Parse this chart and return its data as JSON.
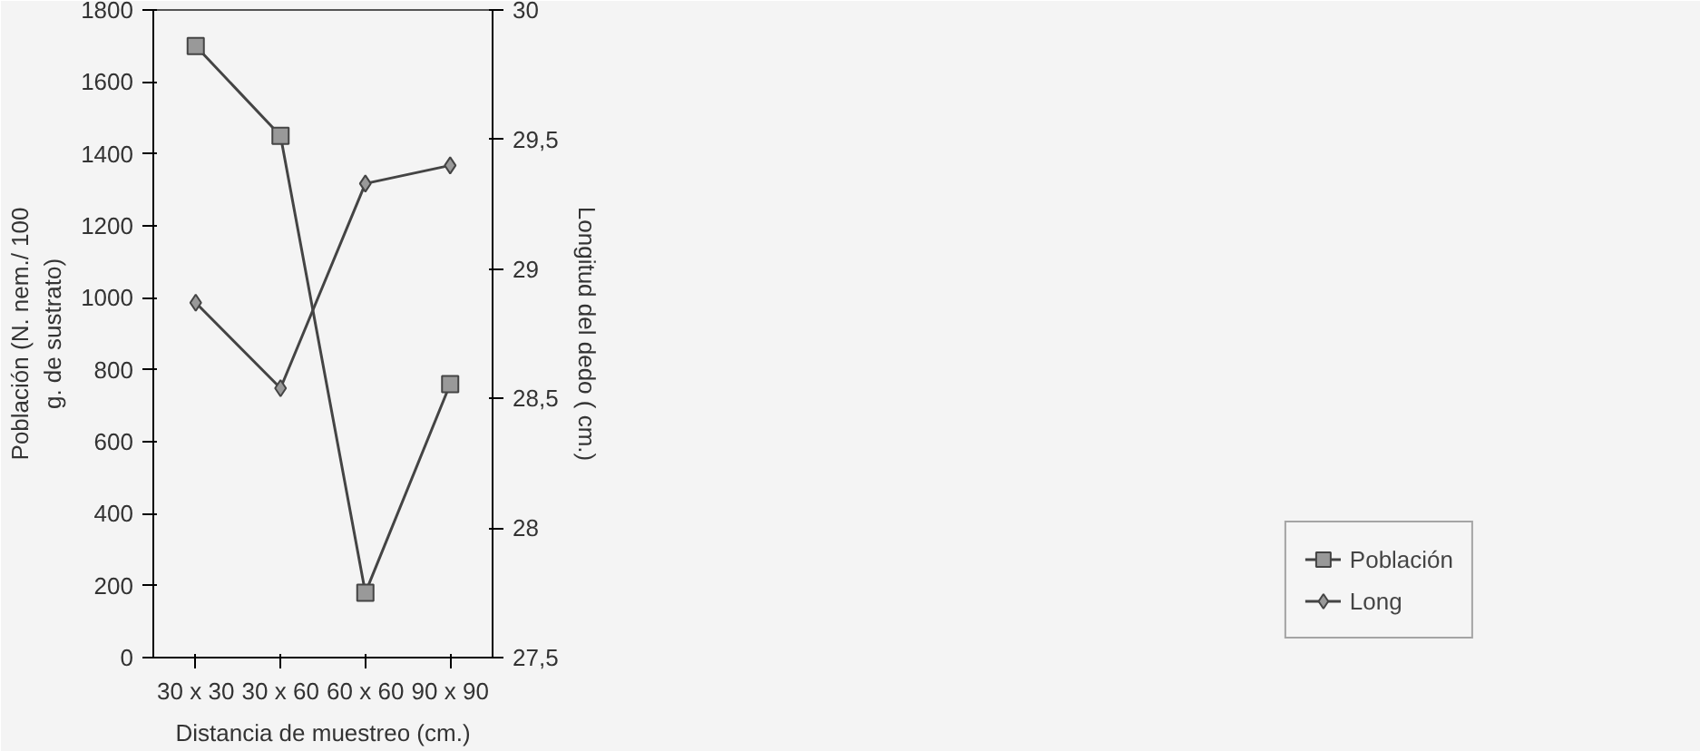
{
  "chart_data": {
    "type": "line",
    "categories": [
      "30 x 30",
      "30 x 60",
      "60 x 60",
      "90 x 90"
    ],
    "xlabel": "Distancia de muestreo (cm.)",
    "ylabel": "Población (N. nem./ 100\ng. de sustrato)",
    "y2label": "Longitud del dedo ( cm.)",
    "ylim": [
      0,
      1800
    ],
    "yticks": [
      0,
      200,
      400,
      600,
      800,
      1000,
      1200,
      1400,
      1600,
      1800
    ],
    "y2lim": [
      27.5,
      30
    ],
    "y2ticks": [
      {
        "value": 27.5,
        "label": "27,5"
      },
      28,
      {
        "value": 28.5,
        "label": "28,5"
      },
      29,
      {
        "value": 29.5,
        "label": "29,5"
      },
      30
    ],
    "series": [
      {
        "name": "Población",
        "color": "#444444",
        "marker": "square",
        "values": [
          1700,
          1450,
          180,
          760
        ]
      },
      {
        "name": "Long",
        "color": "#444444",
        "marker": "diamond",
        "axis": "y2",
        "values": [
          28.87,
          28.54,
          29.33,
          29.4
        ]
      }
    ],
    "grid": false,
    "legend": "bottom right"
  }
}
